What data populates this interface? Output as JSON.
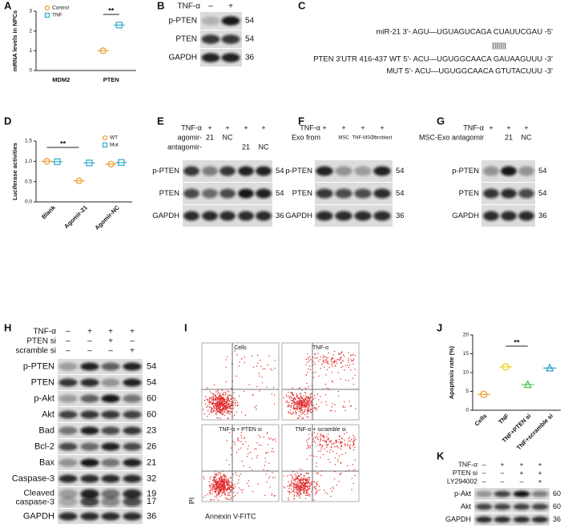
{
  "chart_data": [
    {
      "type": "dot",
      "letter": "A",
      "y_label": "mRNA levels in NPCs",
      "categories": [
        "MDM2",
        "PTEN"
      ],
      "series": [
        {
          "name": "Control",
          "color": "#f0a030",
          "marker": "circle",
          "values": [
            null,
            1.0
          ]
        },
        {
          "name": "TNF",
          "color": "#3aaecc",
          "marker": "square",
          "values": [
            null,
            2.3
          ]
        }
      ],
      "ylim": [
        0,
        3
      ],
      "yticks": [
        0,
        1,
        2,
        3
      ],
      "annotation": "**",
      "legend": "upper-left"
    },
    {
      "type": "dot",
      "letter": "D",
      "y_label": "Luciferase activities",
      "categories": [
        "Blank",
        "Agomir-21",
        "Agomir-NC"
      ],
      "series": [
        {
          "name": "WT",
          "color": "#f0a030",
          "marker": "circle",
          "values": [
            1.0,
            0.52,
            0.93
          ]
        },
        {
          "name": "Mut",
          "color": "#3aaecc",
          "marker": "square",
          "values": [
            0.99,
            0.96,
            0.97
          ]
        }
      ],
      "ylim": [
        0,
        1.5
      ],
      "yticks": [
        {
          "value": 0,
          "label": "0.0"
        },
        {
          "value": 0.5,
          "label": "0.5"
        },
        {
          "value": 1,
          "label": "1.0"
        },
        {
          "value": 1.5,
          "label": "1.5"
        }
      ],
      "annotation": "**",
      "legend": "upper-right"
    },
    {
      "type": "dot",
      "letter": "J",
      "y_label": "Apoptosis rate (%)",
      "categories": [
        "Cells",
        "TNF",
        "TNF+PTEN si",
        "TNF+scramble si"
      ],
      "values": [
        4.2,
        11.5,
        6.8,
        11.2
      ],
      "colors": [
        "#f0a030",
        "#f0d020",
        "#50c050",
        "#30a0c8"
      ],
      "markers": [
        "circle",
        "circle",
        "triangle",
        "triangle"
      ],
      "ylim": [
        0,
        20
      ],
      "yticks": [
        0,
        5,
        10,
        15,
        20
      ],
      "annotation": "**"
    }
  ],
  "blots": [
    {
      "letter": "B",
      "conditions": [
        {
          "label": "TNF-α",
          "values": [
            "–",
            "+"
          ]
        }
      ],
      "rows": [
        {
          "label": "p-PTEN",
          "kda": 54
        },
        {
          "label": "PTEN",
          "kda": 54
        },
        {
          "label": "GAPDH",
          "kda": 36
        }
      ]
    },
    {
      "letter": "E",
      "conditions": [
        {
          "label": "TNF-α",
          "values": [
            null,
            "+",
            "+",
            "+",
            "+"
          ]
        },
        {
          "label": "agomir-",
          "values": [
            null,
            "21",
            "NC",
            null,
            null
          ]
        },
        {
          "label": "antagomir-",
          "values": [
            null,
            null,
            null,
            "21",
            "NC"
          ]
        }
      ],
      "rows": [
        {
          "label": "p-PTEN",
          "kda": 54
        },
        {
          "label": "PTEN",
          "kda": 54
        },
        {
          "label": "GAPDH",
          "kda": 36
        }
      ]
    },
    {
      "letter": "F",
      "conditions": [
        {
          "label": "TNF-α",
          "values": [
            "+",
            "+",
            "+",
            "+"
          ]
        },
        {
          "label": "Exo from",
          "values": [
            null,
            "MSC",
            "TNF-MSC",
            "fibroblast"
          ]
        }
      ],
      "rows": [
        {
          "label": "p-PTEN",
          "kda": 54
        },
        {
          "label": "PTEN",
          "kda": 54
        },
        {
          "label": "GAPDH",
          "kda": 36
        }
      ]
    },
    {
      "letter": "G",
      "conditions": [
        {
          "label": "TNF-α",
          "values": [
            "+",
            "+",
            "+"
          ]
        },
        {
          "label": "MSC-Exo antagomir",
          "values": [
            null,
            "21",
            "NC"
          ]
        }
      ],
      "rows": [
        {
          "label": "p-PTEN",
          "kda": 54
        },
        {
          "label": "PTEN",
          "kda": 54
        },
        {
          "label": "GAPDH",
          "kda": 36
        }
      ]
    },
    {
      "letter": "H",
      "conditions": [
        {
          "label": "TNF-α",
          "values": [
            "–",
            "+",
            "+",
            "+"
          ]
        },
        {
          "label": "PTEN si",
          "values": [
            "–",
            "–",
            "+",
            "–"
          ]
        },
        {
          "label": "scramble si",
          "values": [
            "–",
            "–",
            "–",
            "+"
          ]
        }
      ],
      "rows": [
        {
          "label": "p-PTEN",
          "kda": 54
        },
        {
          "label": "PTEN",
          "kda": 54
        },
        {
          "label": "p-Akt",
          "kda": 60
        },
        {
          "label": "Akt",
          "kda": 60
        },
        {
          "label": "Bad",
          "kda": 23
        },
        {
          "label": "Bcl-2",
          "kda": 26
        },
        {
          "label": "Bax",
          "kda": 21
        },
        {
          "label": "Caspase-3",
          "kda": 32
        },
        {
          "label": [
            "Cleaved",
            "caspase-3"
          ],
          "kda": [
            19,
            17
          ]
        },
        {
          "label": "GAPDH",
          "kda": 36
        }
      ]
    },
    {
      "letter": "K",
      "conditions": [
        {
          "label": "TNF-α",
          "values": [
            "–",
            "+",
            "+",
            "+"
          ]
        },
        {
          "label": "PTEN si",
          "values": [
            "–",
            "–",
            "+",
            "+"
          ]
        },
        {
          "label": "LY294002",
          "values": [
            "–",
            "–",
            "–",
            "+"
          ]
        }
      ],
      "rows": [
        {
          "label": "p-Akt",
          "kda": 60
        },
        {
          "label": "Akt",
          "kda": 60
        },
        {
          "label": "GAPDH",
          "kda": 36
        }
      ]
    }
  ],
  "sequence": {
    "letter": "C",
    "lines": [
      "miR-21 3'- AGU—UGUAGUCAGA CUAUUCGAU -5'",
      "|||||||",
      "PTEN 3'UTR 416-437 WT 5'- ACU—UGUGGCAACA GAUAAGUUU -3'",
      "MUT 5'- ACU—UGUGGCAACA GTUTACUUU -3'"
    ]
  },
  "flow": {
    "letter": "I",
    "plots": [
      "Cells",
      "TNF-α",
      "TNF-α + PTEN si",
      "TNF-α + scramble si"
    ],
    "y_label": "PI",
    "x_label": "Annexin V-FITC"
  }
}
